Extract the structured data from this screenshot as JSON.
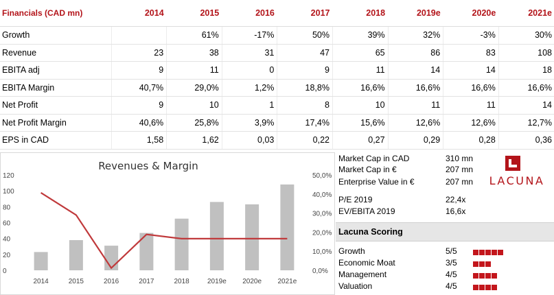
{
  "table": {
    "header": [
      "Financials (CAD mn)",
      "2014",
      "2015",
      "2016",
      "2017",
      "2018",
      "2019e",
      "2020e",
      "2021e"
    ],
    "rows": [
      [
        "Growth",
        "",
        "61%",
        "-17%",
        "50%",
        "39%",
        "32%",
        "-3%",
        "30%"
      ],
      [
        "Revenue",
        "23",
        "38",
        "31",
        "47",
        "65",
        "86",
        "83",
        "108"
      ],
      [
        "EBITA adj",
        "9",
        "11",
        "0",
        "9",
        "11",
        "14",
        "14",
        "18"
      ],
      [
        "EBITA Margin",
        "40,7%",
        "29,0%",
        "1,2%",
        "18,8%",
        "16,6%",
        "16,6%",
        "16,6%",
        "16,6%"
      ],
      [
        "Net Profit",
        "9",
        "10",
        "1",
        "8",
        "10",
        "11",
        "11",
        "14"
      ],
      [
        "Net Profit Margin",
        "40,6%",
        "25,8%",
        "3,9%",
        "17,4%",
        "15,6%",
        "12,6%",
        "12,6%",
        "12,7%"
      ],
      [
        "EPS in CAD",
        "1,58",
        "1,62",
        "0,03",
        "0,22",
        "0,27",
        "0,29",
        "0,28",
        "0,36"
      ]
    ]
  },
  "chart_data": {
    "type": "bar",
    "title": "Revenues & Margin",
    "categories": [
      "2014",
      "2015",
      "2016",
      "2017",
      "2018",
      "2019e",
      "2020e",
      "2021e"
    ],
    "series": [
      {
        "type": "bar",
        "axis": "left",
        "values": [
          23,
          38,
          31,
          47,
          65,
          86,
          83,
          108
        ],
        "color": "#c0c0c0"
      },
      {
        "type": "line",
        "axis": "right",
        "values": [
          40.7,
          29.0,
          1.2,
          18.8,
          16.6,
          16.6,
          16.6,
          16.6
        ],
        "color": "#c0393b"
      }
    ],
    "ylim": [
      0,
      120
    ],
    "y_ticks": [
      "0",
      "20",
      "40",
      "60",
      "80",
      "100",
      "120"
    ],
    "y2lim": [
      0,
      50
    ],
    "y2_ticks": [
      "0,0%",
      "10,0%",
      "20,0%",
      "30,0%",
      "40,0%",
      "50,0%"
    ],
    "grid": false
  },
  "info": {
    "rows": [
      {
        "label": "Market Cap in CAD",
        "value": "310 mn"
      },
      {
        "label": "Market Cap in €",
        "value": "207 mn"
      },
      {
        "label": "Enterprise Value in €",
        "value": "207 mn"
      },
      {
        "label": "P/E 2019",
        "value": "22,4x"
      },
      {
        "label": "EV/EBITA 2019",
        "value": "16,6x"
      }
    ],
    "logo_text": "LACUNA",
    "scoring_title": "Lacuna Scoring",
    "scores": [
      {
        "label": "Growth",
        "value": "5/5",
        "squares": 5
      },
      {
        "label": "Economic Moat",
        "value": "3/5",
        "squares": 3
      },
      {
        "label": "Management",
        "value": "4/5",
        "squares": 4
      },
      {
        "label": "Valuation",
        "value": "4/5",
        "squares": 4
      }
    ],
    "accent_color": "#c3161c"
  }
}
